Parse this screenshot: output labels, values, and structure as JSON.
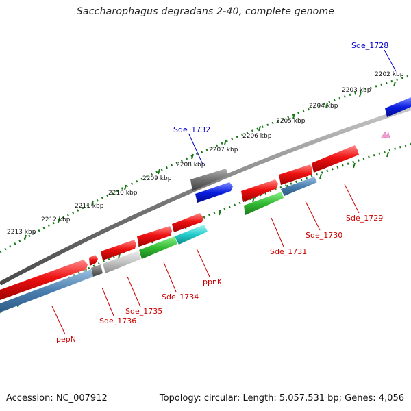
{
  "title": "Saccharophagus degradans 2-40, complete genome",
  "footer": {
    "accession": "Accession: NC_007912",
    "summary": "Topology: circular; Length: 5,057,531 bp; Genes: 4,056"
  },
  "scale_labels": [
    "2202 kbp",
    "2203 kbp",
    "2204 kbp",
    "2205 kbp",
    "2206 kbp",
    "2207 kbp",
    "2208 kbp",
    "2209 kbp",
    "2210 kbp",
    "2211 kbp",
    "2212 kbp",
    "2213 kbp"
  ],
  "genes": [
    {
      "name": "Sde_1728",
      "color": "#0000cc"
    },
    {
      "name": "Sde_1732",
      "color": "#0000cc"
    },
    {
      "name": "Sde_1729",
      "color": "#cc0000"
    },
    {
      "name": "Sde_1730",
      "color": "#cc0000"
    },
    {
      "name": "Sde_1731",
      "color": "#cc0000"
    },
    {
      "name": "ppnK",
      "color": "#cc0000"
    },
    {
      "name": "Sde_1734",
      "color": "#cc0000"
    },
    {
      "name": "Sde_1735",
      "color": "#cc0000"
    },
    {
      "name": "Sde_1736",
      "color": "#cc0000"
    },
    {
      "name": "pepN",
      "color": "#cc0000"
    }
  ],
  "colors": {
    "forward_cds": "#ee1111",
    "reverse_cds_blue": "#4a7fb0",
    "green_cds": "#33bb33",
    "cyan_cds": "#22cccc",
    "grey_cds": "#707070",
    "lightgrey_cds": "#bdbdbd",
    "blue_cds": "#0a1ee0",
    "backbone": "#7a7a7a",
    "ticks": "#1a7a1a"
  }
}
